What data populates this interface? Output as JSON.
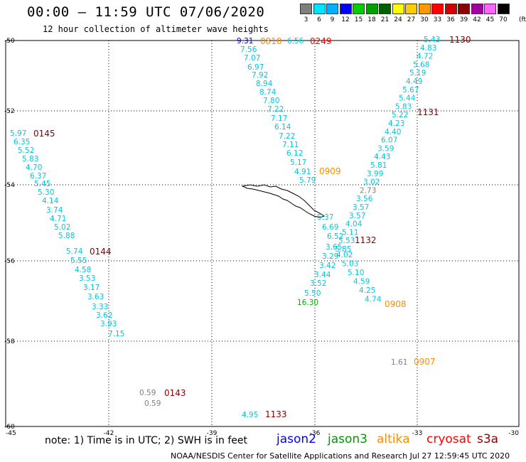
{
  "title": "00:00 – 11:59 UTC 07/06/2020",
  "subtitle": "12 hour collection of altimeter wave heights",
  "legend": {
    "labels": [
      "3",
      "6",
      "9",
      "12",
      "15",
      "18",
      "21",
      "24",
      "27",
      "30",
      "33",
      "36",
      "39",
      "42",
      "45",
      "70"
    ],
    "colors": [
      "#7f7f7f",
      "#00e5ff",
      "#00b0ff",
      "#0000ff",
      "#00d000",
      "#00a000",
      "#006000",
      "#ffff00",
      "#ffcc00",
      "#ff9900",
      "#ff0000",
      "#d00000",
      "#900000",
      "#a000a0",
      "#ff66ff",
      "#000000"
    ],
    "unit": "(ft)"
  },
  "axes": {
    "lon_ticks": [
      "-45",
      "-42",
      "-39",
      "-36",
      "-33",
      "-30"
    ],
    "lat_ticks": [
      "-50",
      "-52",
      "-54",
      "-56",
      "-58",
      "-60"
    ]
  },
  "tracks": [
    {
      "time": "0145",
      "color": "#8b0000"
    },
    {
      "time": "0144",
      "color": "#8b0000"
    },
    {
      "time": "0143",
      "color": "#8b0000"
    },
    {
      "time": "0810",
      "color": "#ff8c00"
    },
    {
      "time": "0249",
      "color": "#ff0000"
    },
    {
      "time": "0909",
      "color": "#ff8c00"
    },
    {
      "time": "1130",
      "color": "#8b0000"
    },
    {
      "time": "1131",
      "color": "#8b0000"
    },
    {
      "time": "1132",
      "color": "#8b0000"
    },
    {
      "time": "0908",
      "color": "#ff8c00"
    },
    {
      "time": "0907",
      "color": "#ff8c00"
    },
    {
      "time": "1133",
      "color": "#8b0000"
    }
  ],
  "track_a": [
    "5.97",
    "6.35",
    "5.52",
    "5.83",
    "4.70",
    "6.37",
    "5.45",
    "5.30",
    "4.14",
    "3.74",
    "4.71",
    "5.02",
    "5.88",
    "5.74",
    "5.55",
    "4.58",
    "3.53",
    "3.17",
    "3.63",
    "3.33",
    "3.62",
    "3.93",
    "7.15"
  ],
  "track_b": [
    "9.31",
    "7.56",
    "7.07",
    "6.97",
    "7.92",
    "8.94",
    "8.74",
    "7.80",
    "7.22",
    "7.17",
    "6.14",
    "7.22",
    "7.11",
    "6.12",
    "5.17",
    "4.91",
    "5.79"
  ],
  "track_b_extra": "6.56",
  "track_c": [
    "5.43",
    "4.83",
    "4.72",
    "5.68",
    "5.19",
    "4.49",
    "5.67",
    "5.44",
    "5.83",
    "5.22",
    "4.23",
    "4.40",
    "6.07",
    "3.59",
    "4.43",
    "5.81",
    "3.99",
    "3.02",
    "2.73",
    "3.56",
    "3.57",
    "3.57",
    "4.04",
    "5.11",
    "5.53",
    "5.85",
    "4.02",
    "5.03",
    "5.10",
    "4.59",
    "4.25",
    "4.74"
  ],
  "track_d": [
    "5.37",
    "6.69",
    "6.52",
    "3.65",
    "3.29",
    "3.42",
    "3.44",
    "3.52",
    "5.50",
    "16.30"
  ],
  "single_values": {
    "v_0143_a": "0.59",
    "v_0143_b": "0.59",
    "v_0907": "1.61",
    "v_1133": "4.95"
  },
  "missions": [
    {
      "name": "jason2",
      "color": "#0000ff"
    },
    {
      "name": "jason3",
      "color": "#009900"
    },
    {
      "name": "altika",
      "color": "#ff8c00"
    },
    {
      "name": "cryosat",
      "color": "#ff0000"
    },
    {
      "name": "s3a",
      "color": "#8b0000"
    }
  ],
  "note": "note:  1) Time is in UTC;  2) SWH is in feet",
  "footer": "NOAA/NESDIS Center for Satellite Applications and Research     Jul 27 12:59:45 UTC 2020"
}
